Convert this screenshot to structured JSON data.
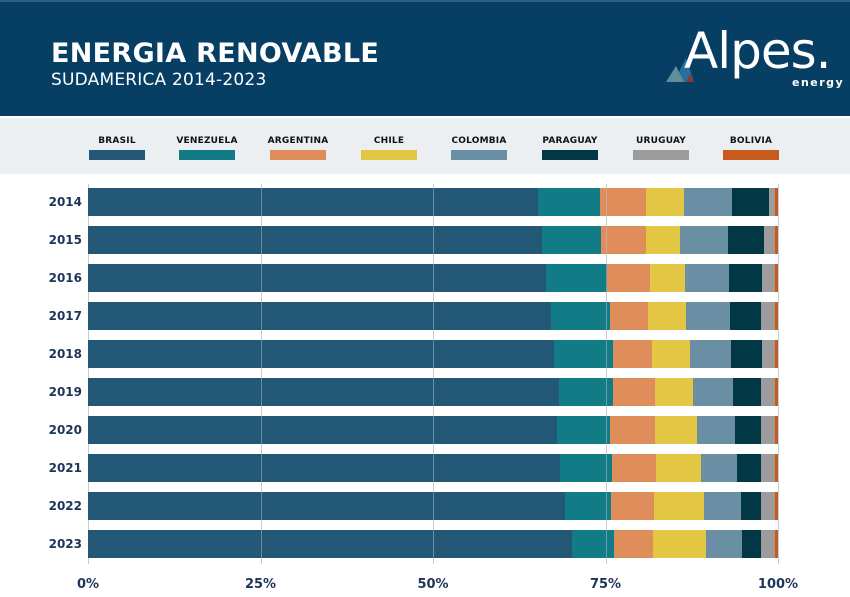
{
  "header": {
    "title": "ENERGIA RENOVABLE",
    "subtitle": "SUDAMERICA 2014-2023",
    "logo_text": "Alpes.",
    "logo_subtext": "energy"
  },
  "colors": {
    "header_bg": "#063f63",
    "legend_bg": "#ebeff2",
    "Brasil": "#235776",
    "Venezuela": "#117c85",
    "Argentina": "#df8d5b",
    "Chile": "#e2c644",
    "Colombia": "#6a8ea3",
    "Paraguay": "#023845",
    "Uruguay": "#9c9c9c",
    "Bolivia": "#c65b1c"
  },
  "legend": [
    {
      "label": "BRASIL",
      "key": "Brasil"
    },
    {
      "label": "VENEZUELA",
      "key": "Venezuela"
    },
    {
      "label": "ARGENTINA",
      "key": "Argentina"
    },
    {
      "label": "CHILE",
      "key": "Chile"
    },
    {
      "label": "COLOMBIA",
      "key": "Colombia"
    },
    {
      "label": "PARAGUAY",
      "key": "Paraguay"
    },
    {
      "label": "URUGUAY",
      "key": "Uruguay"
    },
    {
      "label": "BOLIVIA",
      "key": "Bolivia"
    }
  ],
  "chart_data": {
    "type": "bar",
    "orientation": "horizontal",
    "stacked": "percent",
    "title": "ENERGIA RENOVABLE",
    "subtitle": "SUDAMERICA 2014-2023",
    "xlabel": "",
    "ylabel": "",
    "xlim": [
      0,
      100
    ],
    "x_ticks": [
      "0%",
      "25%",
      "50%",
      "75%",
      "100%"
    ],
    "grid": true,
    "legend_position": "top",
    "categories": [
      "2014",
      "2015",
      "2016",
      "2017",
      "2018",
      "2019",
      "2020",
      "2021",
      "2022",
      "2023"
    ],
    "series": [
      {
        "name": "Brasil",
        "values": [
          65.4,
          65.8,
          66.5,
          67.1,
          67.6,
          68.4,
          68.0,
          68.4,
          69.2,
          70.2
        ]
      },
      {
        "name": "Venezuela",
        "values": [
          9.0,
          8.6,
          8.8,
          8.6,
          8.5,
          7.8,
          7.7,
          7.5,
          6.7,
          6.1
        ]
      },
      {
        "name": "Argentina",
        "values": [
          6.7,
          6.6,
          6.2,
          5.6,
          5.7,
          6.1,
          6.5,
          6.4,
          6.2,
          5.6
        ]
      },
      {
        "name": "Chile",
        "values": [
          5.4,
          4.9,
          5.1,
          5.4,
          5.5,
          5.4,
          6.0,
          6.5,
          7.2,
          7.6
        ]
      },
      {
        "name": "Colombia",
        "values": [
          7.0,
          6.9,
          6.4,
          6.4,
          6.0,
          5.9,
          5.6,
          5.2,
          5.4,
          5.3
        ]
      },
      {
        "name": "Paraguay",
        "values": [
          5.4,
          5.2,
          4.8,
          4.6,
          4.5,
          4.1,
          3.8,
          3.6,
          3.0,
          2.8
        ]
      },
      {
        "name": "Uruguay",
        "values": [
          0.9,
          1.6,
          1.9,
          2.0,
          1.9,
          2.0,
          2.0,
          2.0,
          2.0,
          2.0
        ]
      },
      {
        "name": "Bolivia",
        "values": [
          0.4,
          0.5,
          0.4,
          0.4,
          0.4,
          0.4,
          0.4,
          0.4,
          0.4,
          0.4
        ]
      }
    ]
  }
}
